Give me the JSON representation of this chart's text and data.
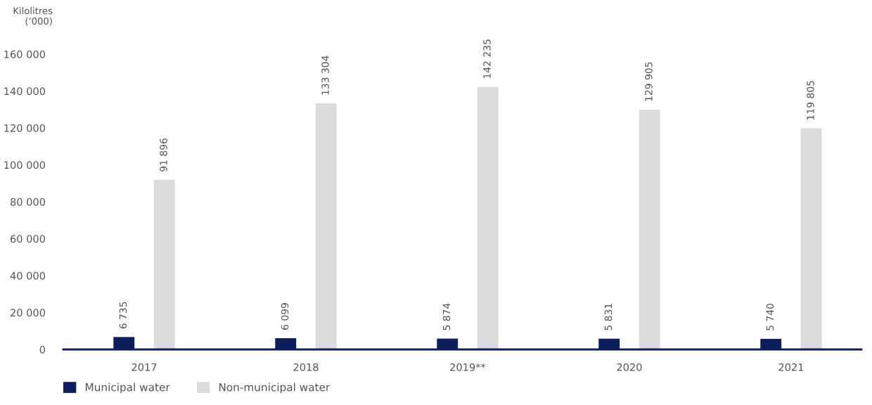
{
  "chart_data": {
    "type": "bar",
    "ylabel": "Kilolitres\n(’000)",
    "categories": [
      "2017",
      "2018",
      "2019**",
      "2020",
      "2021"
    ],
    "series": [
      {
        "name": "Municipal water",
        "color": "#0c1f5c",
        "values": [
          6735,
          6099,
          5874,
          5831,
          5740
        ],
        "value_labels": [
          "6 735",
          "6 099",
          "5 874",
          "5 831",
          "5 740"
        ]
      },
      {
        "name": "Non-municipal water",
        "color": "#dcdcde",
        "values": [
          91896,
          133304,
          142235,
          129905,
          119805
        ],
        "value_labels": [
          "91 896",
          "133 304",
          "142 235",
          "129 905",
          "119 805"
        ]
      }
    ],
    "ylim": [
      0,
      160000
    ],
    "yticks": [
      0,
      {
        "value": 20000,
        "label": "20 000"
      },
      {
        "value": 40000,
        "label": "40 000"
      },
      {
        "value": 60000,
        "label": "60 000"
      },
      {
        "value": 80000,
        "label": "80 000"
      },
      {
        "value": 100000,
        "label": "100 000"
      },
      {
        "value": 120000,
        "label": "120 000"
      },
      {
        "value": 140000,
        "label": "140 000"
      },
      {
        "value": 160000,
        "label": "160 000"
      }
    ],
    "grid": false,
    "legend": "bottom left"
  }
}
